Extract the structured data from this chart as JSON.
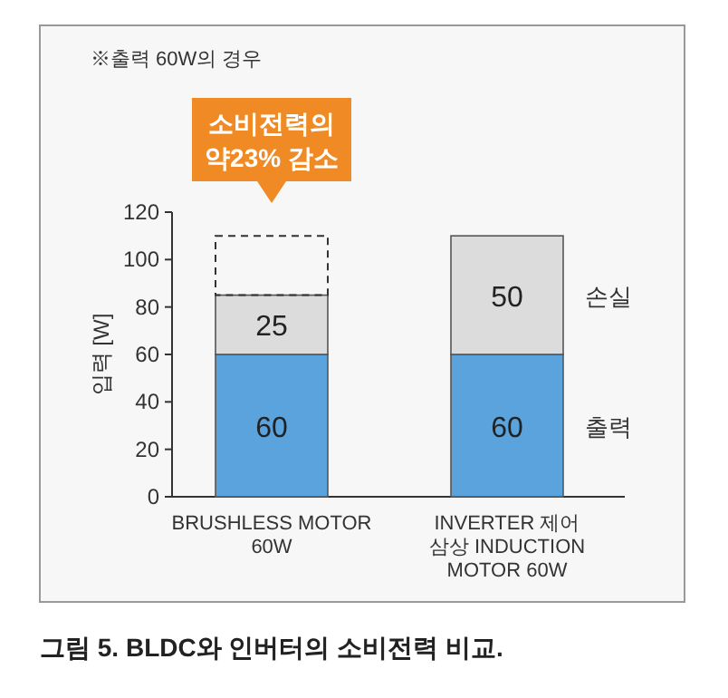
{
  "chart_data": {
    "type": "bar",
    "stacked": true,
    "ylabel": "입력 [W]",
    "categories": [
      "BRUSHLESS MOTOR\n60W",
      "INVERTER 제어\n삼상 INDUCTION\nMOTOR 60W"
    ],
    "series": [
      {
        "name": "출력",
        "color": "#5ba3dd",
        "values": [
          60,
          60
        ]
      },
      {
        "name": "손실",
        "color": "#dcdcdc",
        "values": [
          25,
          50
        ]
      }
    ],
    "data_labels": true,
    "legend": "right",
    "ylim": [
      0,
      120
    ],
    "yticks": [
      0,
      20,
      40,
      60,
      80,
      100,
      120
    ],
    "grid": false,
    "annotations": [
      "※출력 60W의 경우",
      "소비전력의\n약23% 감소",
      "그림 5. BLDC와 인버터의 소비전력 비교."
    ]
  }
}
